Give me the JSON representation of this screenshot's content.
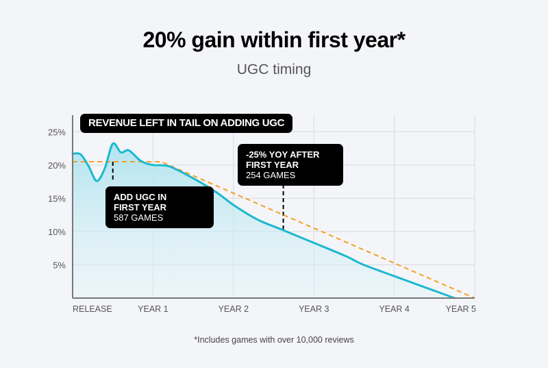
{
  "header": {
    "title": "20% gain within first year*",
    "subtitle": "UGC timing"
  },
  "footnote": "*Includes games with over 10,000 reviews",
  "colors": {
    "background": "#f4f5f9",
    "revenue_line": "#1bb8cf",
    "revenue_fill": "#b6e6ef",
    "reference_line": "#f5a01f",
    "grid": "#d6d9e0",
    "axis": "#777777",
    "badge": "#000000"
  },
  "chart_data": {
    "type": "area",
    "title": "REVENUE LEFT IN TAIL ON ADDING UGC",
    "xlabel": "",
    "ylabel": "",
    "xlim": [
      0,
      5
    ],
    "ylim": [
      0,
      27.5
    ],
    "grid": true,
    "x_ticks": [
      {
        "value": 0,
        "label": "RELEASE"
      },
      {
        "value": 1,
        "label": "YEAR 1"
      },
      {
        "value": 2,
        "label": "YEAR 2"
      },
      {
        "value": 3,
        "label": "YEAR 3"
      },
      {
        "value": 4,
        "label": "YEAR 4"
      },
      {
        "value": 5,
        "label": "YEAR 5"
      }
    ],
    "y_ticks": [
      {
        "value": 5,
        "label": "5%"
      },
      {
        "value": 10,
        "label": "10%"
      },
      {
        "value": 15,
        "label": "15%"
      },
      {
        "value": 20,
        "label": "20%"
      },
      {
        "value": 25,
        "label": "25%"
      }
    ],
    "series": [
      {
        "name": "Revenue with UGC",
        "style": "solid-area",
        "points": [
          [
            0,
            21.7
          ],
          [
            0.1,
            21.6
          ],
          [
            0.2,
            19.8
          ],
          [
            0.3,
            17.6
          ],
          [
            0.4,
            19.5
          ],
          [
            0.5,
            23.2
          ],
          [
            0.6,
            21.9
          ],
          [
            0.7,
            22.2
          ],
          [
            0.85,
            20.6
          ],
          [
            1.0,
            20.0
          ],
          [
            1.2,
            19.8
          ],
          [
            1.5,
            18.0
          ],
          [
            1.8,
            15.8
          ],
          [
            2.0,
            14.0
          ],
          [
            2.3,
            11.8
          ],
          [
            2.6,
            10.3
          ],
          [
            3.0,
            8.3
          ],
          [
            3.4,
            6.3
          ],
          [
            3.6,
            5.1
          ],
          [
            4.0,
            3.3
          ],
          [
            4.5,
            1.1
          ],
          [
            4.75,
            0
          ]
        ]
      },
      {
        "name": "Baseline trend",
        "style": "dashed",
        "points": [
          [
            0,
            20.5
          ],
          [
            1.1,
            20.5
          ],
          [
            5,
            0
          ]
        ]
      }
    ],
    "annotations": [
      {
        "x": 0.5,
        "y_from": 20.5,
        "y_to": 17.8,
        "bold": "ADD UGC IN FIRST YEAR",
        "lines": [
          "ADD UGC IN",
          "FIRST YEAR"
        ],
        "value": "587 GAMES"
      },
      {
        "x": 2.62,
        "y_from": 10.3,
        "y_to": 17.4,
        "bold": "-25% YOY AFTER FIRST YEAR",
        "lines": [
          "-25% YOY AFTER",
          "FIRST YEAR"
        ],
        "value": "254 GAMES"
      }
    ]
  }
}
